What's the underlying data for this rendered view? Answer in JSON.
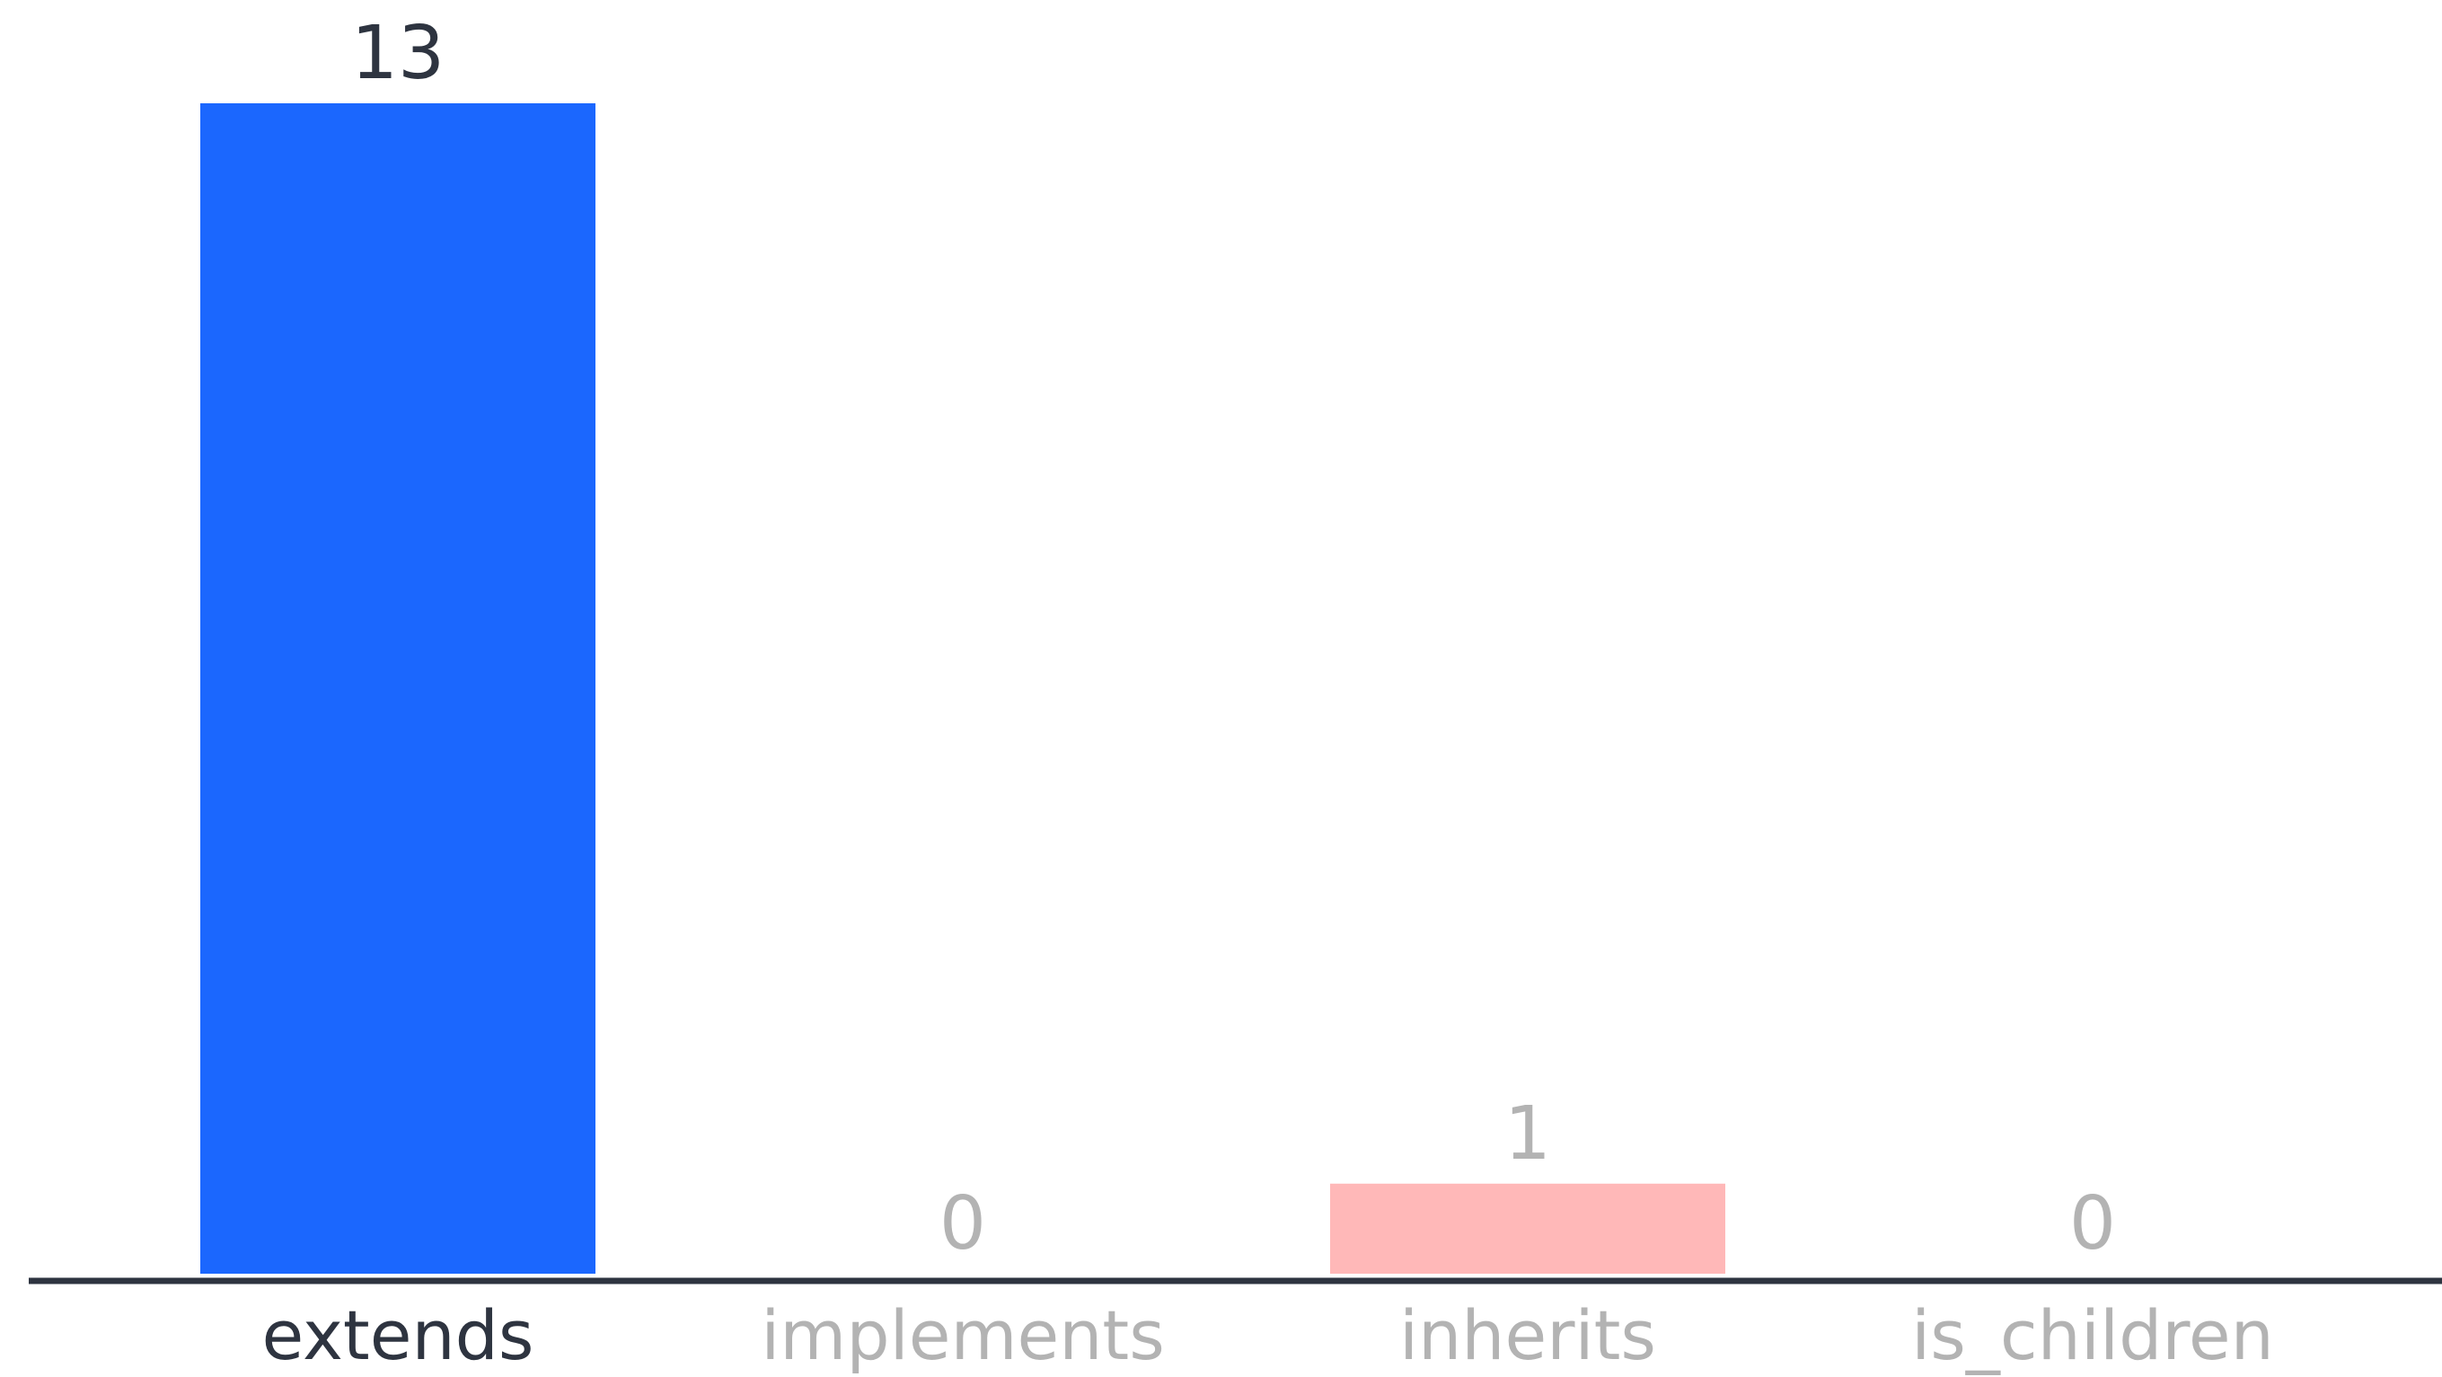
{
  "chart_data": {
    "type": "bar",
    "categories": [
      "extends",
      "implements",
      "inherits",
      "is_children"
    ],
    "values": [
      13,
      0,
      1,
      0
    ],
    "ylim": [
      0,
      13
    ],
    "grid": false,
    "highlighted_category": "extends",
    "bar_colors": [
      "#1b67fe",
      "#1b67fe",
      "#ffb8b8",
      "#1b67fe"
    ],
    "value_label_colors": [
      "#2e3440",
      "#b3b3b3",
      "#b3b3b3",
      "#b3b3b3"
    ],
    "tick_label_colors": [
      "#2e3440",
      "#b3b3b3",
      "#b3b3b3",
      "#b3b3b3"
    ],
    "axis_color": "#2e3440"
  }
}
